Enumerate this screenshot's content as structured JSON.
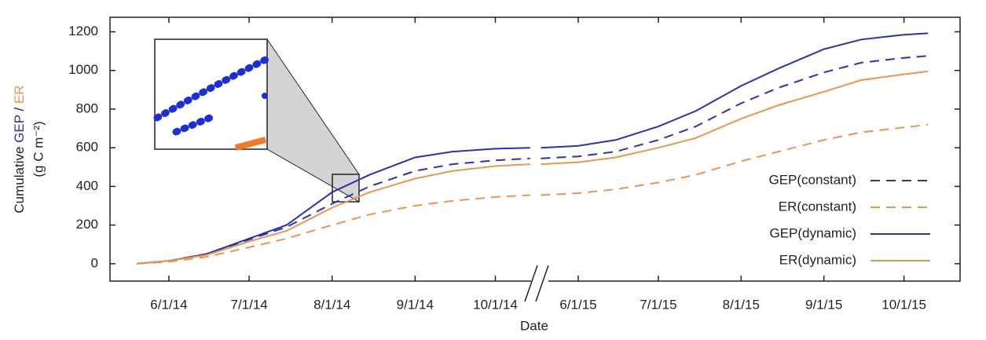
{
  "chart_data": {
    "type": "line",
    "x_label": "Date",
    "y_label": {
      "prefix": "Cumulative",
      "gep": "GEP",
      "sep": "/",
      "er": "ER",
      "unit": "(g C m⁻²)"
    },
    "x": [
      "5/20/14",
      "6/1/14",
      "6/15/14",
      "7/1/14",
      "7/15/14",
      "8/1/14",
      "8/15/14",
      "9/1/14",
      "9/15/14",
      "10/1/14",
      "10/14/14",
      "5/18/15",
      "6/1/15",
      "6/15/15",
      "7/1/15",
      "7/15/15",
      "8/1/15",
      "8/15/15",
      "9/1/15",
      "9/15/15",
      "10/1/15",
      "10/10/15"
    ],
    "xlim": [
      [
        "5/10/14",
        "10/17/14"
      ],
      [
        "5/17/15",
        "10/22/15"
      ]
    ],
    "xticks": [
      "6/1/14",
      "7/1/14",
      "8/1/14",
      "9/1/14",
      "10/1/14",
      "6/1/15",
      "7/1/15",
      "8/1/15",
      "9/1/15",
      "10/1/15"
    ],
    "ylim": [
      -90,
      1275
    ],
    "yticks": [
      0,
      200,
      400,
      600,
      800,
      1000,
      1200
    ],
    "legend": "lower right",
    "series": [
      {
        "name": "GEP(constant)",
        "color": "#2f2fb3",
        "dashed": true,
        "values": [
          0,
          15,
          50,
          125,
          190,
          310,
          400,
          480,
          515,
          535,
          545,
          545,
          555,
          580,
          640,
          710,
          830,
          910,
          990,
          1040,
          1065,
          1075
        ]
      },
      {
        "name": "ER(constant)",
        "color": "#e8964f",
        "dashed": true,
        "values": [
          0,
          10,
          35,
          85,
          130,
          200,
          255,
          300,
          325,
          345,
          355,
          355,
          365,
          385,
          420,
          460,
          530,
          580,
          640,
          680,
          705,
          720
        ]
      },
      {
        "name": "GEP(dynamic)",
        "color": "#2f2fb3",
        "dashed": false,
        "values": [
          0,
          15,
          50,
          130,
          200,
          370,
          460,
          550,
          580,
          595,
          600,
          600,
          610,
          640,
          710,
          790,
          920,
          1010,
          1110,
          1160,
          1185,
          1192
        ]
      },
      {
        "name": "ER(dynamic)",
        "color": "#e8964f",
        "dashed": false,
        "values": [
          0,
          15,
          45,
          115,
          170,
          290,
          370,
          440,
          480,
          505,
          515,
          515,
          525,
          550,
          600,
          650,
          750,
          820,
          890,
          950,
          980,
          995
        ]
      }
    ]
  }
}
